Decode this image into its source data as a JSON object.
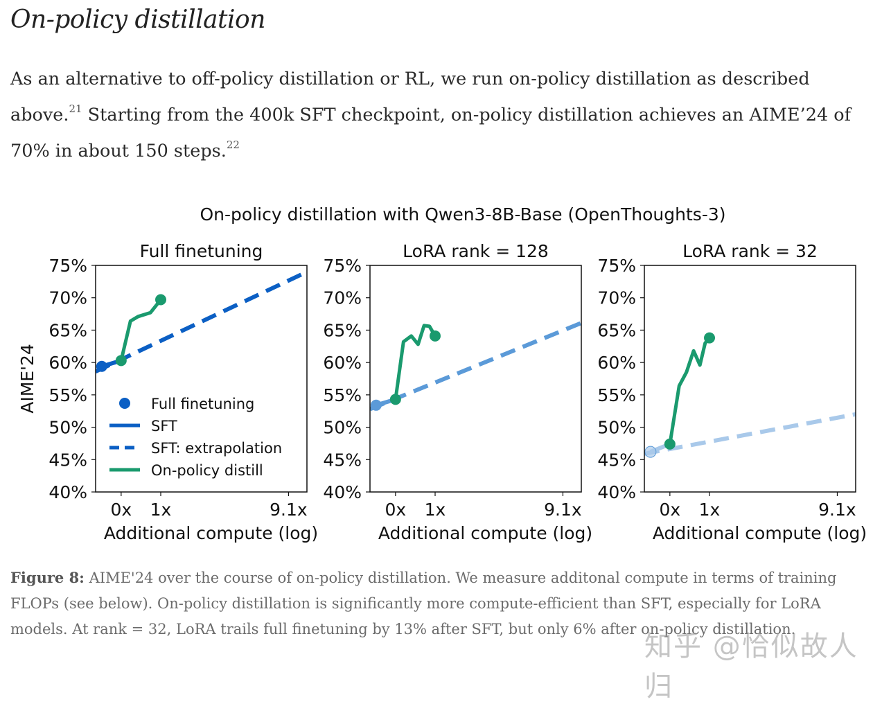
{
  "section": {
    "title": "On-policy distillation"
  },
  "paragraph": {
    "part1": "As an alternative to off-policy distillation or RL, we run on-policy distillation as described above.",
    "footnote1": "21",
    "part2": " Starting from the 400k SFT checkpoint, on-policy distillation achieves an AIME’24 of 70% in about 150 steps.",
    "footnote2": "22"
  },
  "caption": {
    "label": "Figure 8:",
    "text": " AIME'24 over the course of on-policy distillation. We measure additonal compute in terms of training FLOPs (see below). On-policy distillation is significantly more compute-efficient than SFT, especially for LoRA models. At rank = 32, LoRA trails full finetuning by 13% after SFT, but only 6% after on-policy distillation."
  },
  "watermark": "知乎 @恰似故人归",
  "colors": {
    "sft_full": "#0b5fc4",
    "sft_lora128": "#5b9ad8",
    "sft_lora32": "#a9c9ea",
    "on_policy": "#1a9a6e",
    "axis": "#111111"
  },
  "chart_data": {
    "suptitle": "On-policy distillation with Qwen3-8B-Base (OpenThoughts-3)",
    "type": "line",
    "ylabel": "AIME'24",
    "xlabel": "Additional compute (log)",
    "xscale": "log (compute + offset)",
    "xticks": [
      0,
      1,
      9.1
    ],
    "xtick_labels": [
      "0x",
      "1x",
      "9.1x"
    ],
    "xlim": [
      -0.46,
      11.4
    ],
    "ylim": [
      40,
      75
    ],
    "yticks": [
      40,
      45,
      50,
      55,
      60,
      65,
      70,
      75
    ],
    "ytick_labels": [
      "40%",
      "45%",
      "50%",
      "55%",
      "60%",
      "65%",
      "70%",
      "75%"
    ],
    "legend": {
      "placement": "lower-left (first panel)",
      "entries": [
        "Full finetuning",
        "SFT",
        "SFT: extrapolation",
        "On-policy distill"
      ]
    },
    "panels": [
      {
        "title": "Full finetuning",
        "color_key": "sft_full",
        "sft": {
          "x": [
            -0.36,
            0
          ],
          "y": [
            59.4,
            60.3
          ]
        },
        "sft_extrapolation": {
          "x": [
            -0.46,
            11.4
          ],
          "y": [
            58.6,
            74.0
          ]
        },
        "on_policy": {
          "x": [
            0,
            0.2,
            0.38,
            0.7,
            1.0
          ],
          "y": [
            60.3,
            66.4,
            67.1,
            67.7,
            69.7
          ]
        }
      },
      {
        "title": "LoRA rank = 128",
        "color_key": "sft_lora128",
        "sft": {
          "x": [
            -0.36,
            0
          ],
          "y": [
            53.4,
            54.3
          ]
        },
        "sft_extrapolation": {
          "x": [
            -0.46,
            11.4
          ],
          "y": [
            52.8,
            66.1
          ]
        },
        "on_policy": {
          "x": [
            0,
            0.17,
            0.35,
            0.52,
            0.68,
            0.83,
            1.0
          ],
          "y": [
            54.3,
            63.2,
            64.1,
            62.8,
            65.7,
            65.6,
            64.1
          ]
        }
      },
      {
        "title": "LoRA rank = 32",
        "color_key": "sft_lora32",
        "sft": {
          "x": [
            -0.36,
            0
          ],
          "y": [
            46.2,
            47.4
          ]
        },
        "sft_extrapolation": {
          "x": [
            -0.46,
            11.4
          ],
          "y": [
            45.9,
            52.0
          ]
        },
        "on_policy": {
          "x": [
            0,
            0.2,
            0.37,
            0.55,
            0.72,
            0.87,
            1.0
          ],
          "y": [
            47.4,
            56.4,
            58.5,
            61.8,
            59.6,
            63.0,
            63.8
          ]
        }
      }
    ]
  }
}
